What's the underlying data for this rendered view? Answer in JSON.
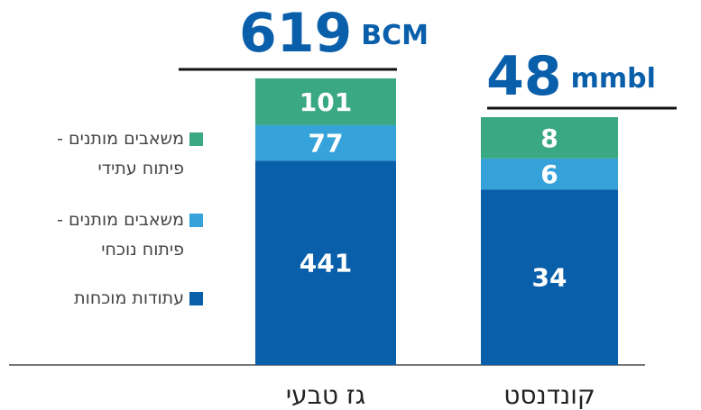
{
  "chart_data": {
    "type": "stacked_bar",
    "categories": [
      "גז טבעי",
      "קונדנסט"
    ],
    "totals": [
      619,
      48
    ],
    "units": [
      "BCM",
      "mmbl"
    ],
    "series": [
      {
        "name": "עתודות מוכחות",
        "color": "#0a5fab",
        "values": [
          441,
          34
        ]
      },
      {
        "name": "משאבים מותנים - פיתוח נוכחי",
        "color": "#35a3d9",
        "values": [
          77,
          6
        ]
      },
      {
        "name": "משאבים מותנים - פיתוח עתידי",
        "color": "#3aa882",
        "values": [
          101,
          8
        ]
      }
    ]
  }
}
